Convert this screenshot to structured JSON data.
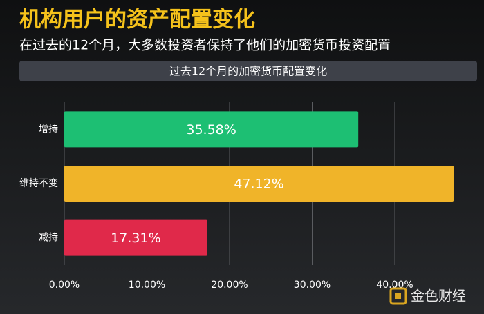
{
  "chart_data": {
    "type": "bar",
    "orientation": "horizontal",
    "title": "机构用户的资产配置变化",
    "subtitle": "在过去的12个月，大多数投资者保持了他们的加密货币投资配置",
    "chart_title": "过去12个月的加密货币配置变化",
    "categories": [
      "增持",
      "维持不变",
      "减持"
    ],
    "values": [
      35.58,
      47.12,
      17.31
    ],
    "value_labels": [
      "35.58%",
      "47.12%",
      "17.31%"
    ],
    "colors": [
      "#1dbf73",
      "#f0b429",
      "#e0294a"
    ],
    "xlim": [
      0,
      50
    ],
    "xticks": [
      {
        "value": 0,
        "label": "0.00%"
      },
      {
        "value": 10,
        "label": "10.00%"
      },
      {
        "value": 20,
        "label": "20.00%"
      },
      {
        "value": 30,
        "label": "30.00%"
      },
      {
        "value": 40,
        "label": "40.00%"
      }
    ],
    "grid": true,
    "watermark": "金色财经"
  }
}
